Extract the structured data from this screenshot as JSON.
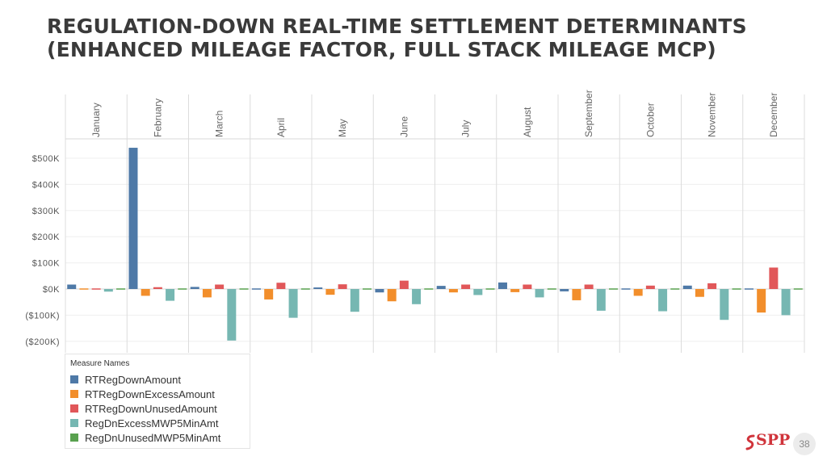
{
  "title": "REGULATION-DOWN REAL-TIME SETTLEMENT DETERMINANTS (ENHANCED MILEAGE FACTOR, FULL STACK MILEAGE MCP)",
  "legend": {
    "title": "Measure Names",
    "items": [
      {
        "label": "RTRegDownAmount",
        "color": "#4e79a7"
      },
      {
        "label": "RTRegDownExcessAmount",
        "color": "#f28e2b"
      },
      {
        "label": "RTRegDownUnusedAmount",
        "color": "#e15759"
      },
      {
        "label": "RegDnExcessMWP5MinAmt",
        "color": "#76b7b2"
      },
      {
        "label": "RegDnUnusedMWP5MinAmt",
        "color": "#59a14f"
      }
    ]
  },
  "brand": {
    "name": "SPP",
    "color": "#d0343b"
  },
  "page_number": "38",
  "chart_data": {
    "type": "bar",
    "categories": [
      "January",
      "February",
      "March",
      "April",
      "May",
      "June",
      "July",
      "August",
      "September",
      "October",
      "November",
      "December"
    ],
    "ylim": [
      -200000,
      500000
    ],
    "y_ticks": [
      500000,
      400000,
      300000,
      200000,
      100000,
      0,
      -100000,
      -200000
    ],
    "y_tick_labels": [
      "$500K",
      "$400K",
      "$300K",
      "$200K",
      "$100K",
      "$0K",
      "($100K)",
      "($200K)"
    ],
    "grid": true,
    "legend_position": "bottom-left",
    "series": [
      {
        "name": "RTRegDownAmount",
        "color": "#4e79a7",
        "values": [
          17000,
          540000,
          8000,
          0,
          6000,
          -13000,
          12000,
          25000,
          -9000,
          3000,
          13000,
          3000
        ]
      },
      {
        "name": "RTRegDownExcessAmount",
        "color": "#f28e2b",
        "values": [
          -4000,
          -26000,
          -32000,
          -40000,
          -22000,
          -47000,
          -13000,
          -12000,
          -43000,
          -26000,
          -30000,
          -90000
        ]
      },
      {
        "name": "RTRegDownUnusedAmount",
        "color": "#e15759",
        "values": [
          4000,
          7000,
          17000,
          24000,
          18000,
          32000,
          17000,
          17000,
          17000,
          13000,
          22000,
          82000
        ]
      },
      {
        "name": "RegDnExcessMWP5MinAmt",
        "color": "#76b7b2",
        "values": [
          -10000,
          -45000,
          -197000,
          -110000,
          -87000,
          -58000,
          -23000,
          -32000,
          -83000,
          -85000,
          -118000,
          -100000
        ]
      },
      {
        "name": "RegDnUnusedMWP5MinAmt",
        "color": "#59a14f",
        "values": [
          -2000,
          -2000,
          -3000,
          -2000,
          -3000,
          -2000,
          -2000,
          -2000,
          -2000,
          -2000,
          -2000,
          -2000
        ]
      }
    ]
  }
}
